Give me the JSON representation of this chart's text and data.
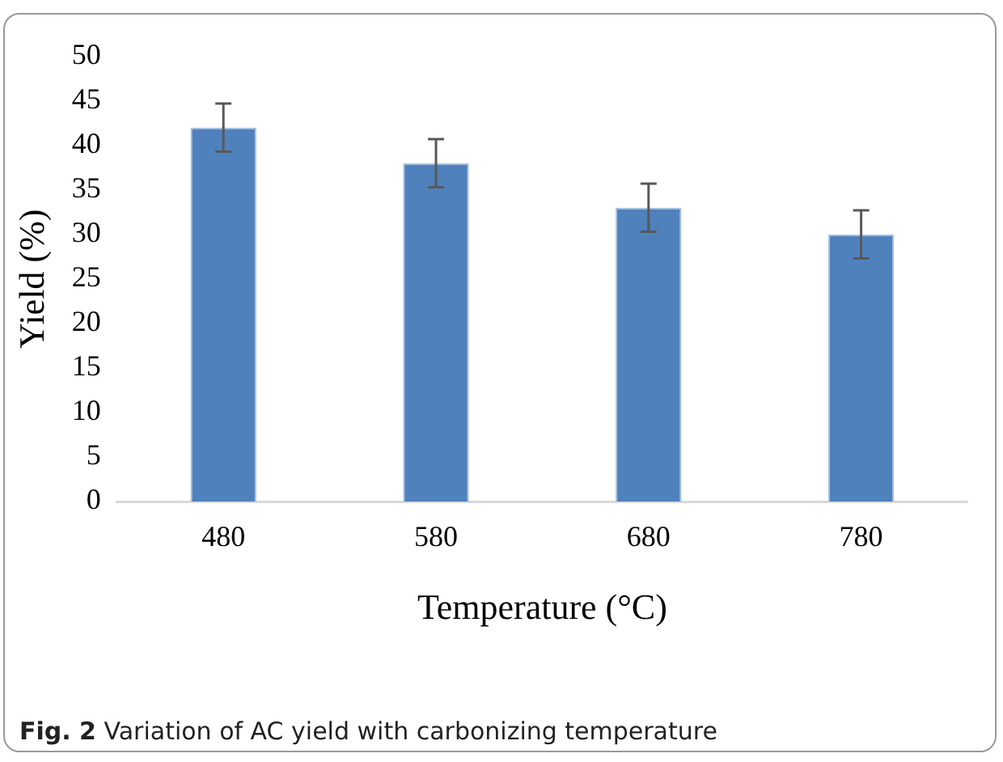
{
  "chart_data": {
    "type": "bar",
    "categories": [
      "480",
      "580",
      "680",
      "780"
    ],
    "values": [
      42,
      38,
      33,
      30
    ],
    "errors": [
      2.7,
      2.7,
      2.7,
      2.7
    ],
    "color": "#4f81bd",
    "xlabel": "Temperature (°C)",
    "ylabel": "Yield (%)",
    "ylim": [
      0,
      50
    ],
    "yticks": [
      0,
      5,
      10,
      15,
      20,
      25,
      30,
      35,
      40,
      45,
      50
    ],
    "grid": false,
    "legend": false,
    "annotations": [
      "Fig. 2  Variation of AC yield with carbonizing temperature"
    ]
  }
}
